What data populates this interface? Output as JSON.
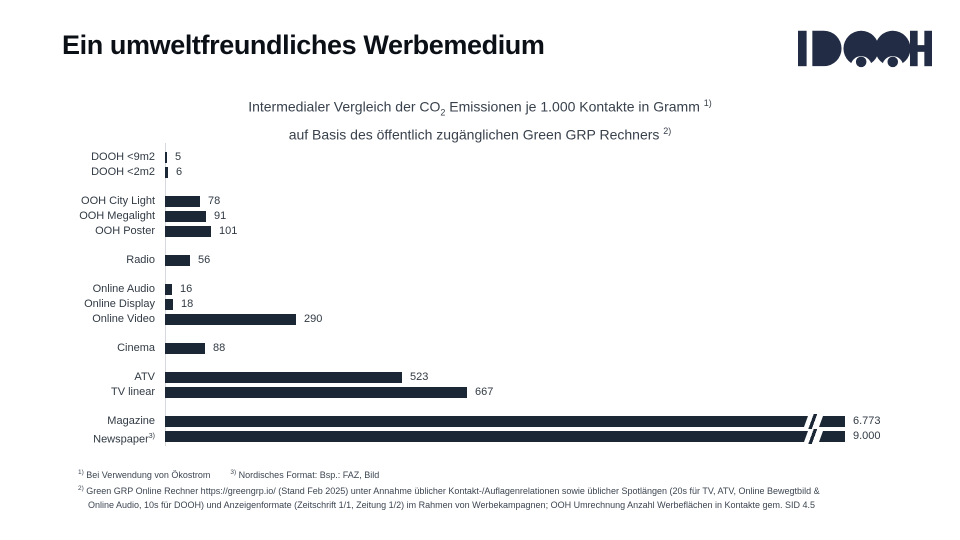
{
  "page": {
    "heading": "Ein umweltfreundliches Werbemedium"
  },
  "logo": {
    "brand": "IDOOH",
    "color": "#222c44"
  },
  "chart": {
    "bar_color": "#1b2735",
    "axis_color": "#d5d8dc",
    "title": {
      "pre": "Intermedialer Vergleich der CO",
      "sub": "2",
      "mid": " Emissionen je 1.000 Kontakte in Gramm ",
      "sup": "1)",
      "line2": "auf Basis des öffentlich zugänglichen Green GRP Rechners ",
      "line2_sup": "2)"
    }
  },
  "chart_data": {
    "type": "bar",
    "orientation": "horizontal",
    "title": "Intermedialer Vergleich der CO2 Emissionen je 1.000 Kontakte in Gramm auf Basis des öffentlich zugänglichen Green GRP Rechners",
    "xlabel": "CO2 Emissionen je 1.000 Kontakte (Gramm)",
    "xlim": [
      0,
      700
    ],
    "grid": false,
    "legend": false,
    "axis_break_note": "Magazine and Newspaper bars are truncated with // break marks before their value labels",
    "categories": [
      "DOOH <9m2",
      "DOOH <2m2",
      "OOH City Light",
      "OOH Megalight",
      "OOH Poster",
      "Radio",
      "Online Audio",
      "Online Display",
      "Online Video",
      "Cinema",
      "ATV",
      "TV linear",
      "Magazine",
      "Newspaper 3)"
    ],
    "values": [
      5,
      6,
      78,
      91,
      101,
      56,
      16,
      18,
      290,
      88,
      523,
      667,
      6773,
      9000
    ],
    "value_labels": [
      "5",
      "6",
      "78",
      "91",
      "101",
      "56",
      "16",
      "18",
      "290",
      "88",
      "523",
      "667",
      "6.773",
      "9.000"
    ],
    "groups": [
      {
        "items": [
          {
            "label": "DOOH <9m2",
            "value": 5,
            "display": "5"
          },
          {
            "label": "DOOH <2m2",
            "value": 6,
            "display": "6"
          }
        ]
      },
      {
        "items": [
          {
            "label": "OOH City Light",
            "value": 78,
            "display": "78"
          },
          {
            "label": "OOH Megalight",
            "value": 91,
            "display": "91"
          },
          {
            "label": "OOH Poster",
            "value": 101,
            "display": "101"
          }
        ]
      },
      {
        "items": [
          {
            "label": "Radio",
            "value": 56,
            "display": "56"
          }
        ]
      },
      {
        "items": [
          {
            "label": "Online Audio",
            "value": 16,
            "display": "16"
          },
          {
            "label": "Online Display",
            "value": 18,
            "display": "18"
          },
          {
            "label": "Online Video",
            "value": 290,
            "display": "290"
          }
        ]
      },
      {
        "items": [
          {
            "label": "Cinema",
            "value": 88,
            "display": "88"
          }
        ]
      },
      {
        "items": [
          {
            "label": "ATV",
            "value": 523,
            "display": "523"
          },
          {
            "label": "TV linear",
            "value": 667,
            "display": "667"
          }
        ]
      },
      {
        "items": [
          {
            "label": "Magazine",
            "value": 6773,
            "display": "6.773",
            "broken": true
          },
          {
            "label": "Newspaper",
            "label_sup": "3)",
            "value": 9000,
            "display": "9.000",
            "broken": true
          }
        ]
      }
    ]
  },
  "footnotes": {
    "fn1_sup": "1)",
    "fn1_text": "Bei Verwendung von Ökostrom",
    "fn3_sup": "3)",
    "fn3_text": "Nordisches Format: Bsp.: FAZ, Bild",
    "fn2_sup": "2)",
    "fn2_text": "Green GRP Online Rechner https://greengrp.io/ (Stand Feb 2025) unter Annahme üblicher Kontakt-/Auflagenrelationen sowie üblicher Spotlängen (20s für TV, ATV, Online Bewegtbild &",
    "fn2_text2": "Online Audio, 10s für DOOH) und Anzeigenformate (Zeitschrift 1/1, Zeitung 1/2) im Rahmen von Werbekampagnen; OOH Umrechnung Anzahl Werbeflächen in Kontakte gem. SID 4.5"
  }
}
